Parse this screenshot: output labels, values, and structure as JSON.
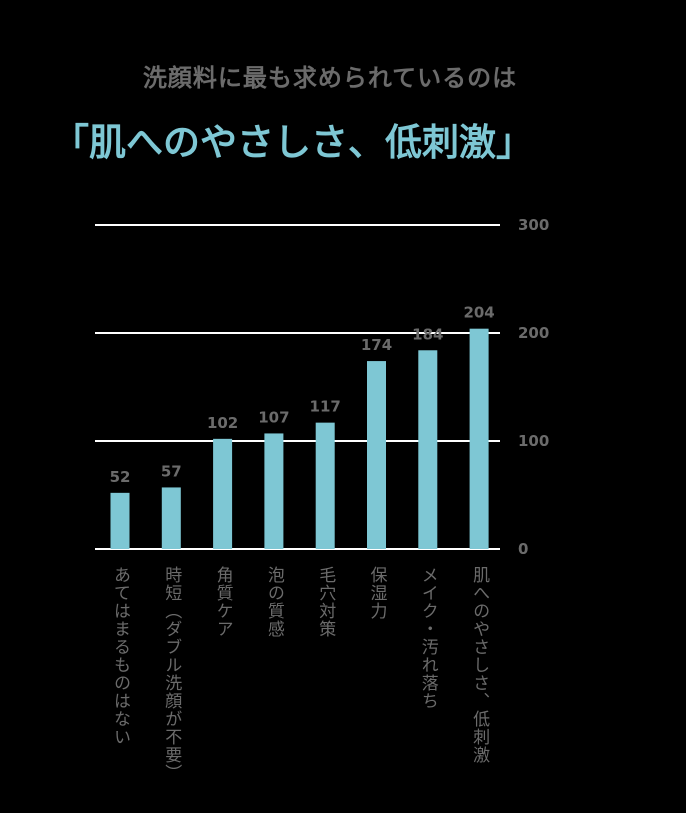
{
  "title": "洗顔料に最も求められているのは",
  "headline": "「肌へのやさしさ、低刺激」",
  "colors": {
    "background": "#000000",
    "bar": "#7ec7d4",
    "title": "#6b6b6b",
    "headline": "#7ec7d4",
    "label": "#6b6b6b",
    "grid": "#ffffff"
  },
  "chart_data": {
    "type": "bar",
    "categories": [
      "あてはまるものはない",
      "時短（ダブル洗顔が不要）",
      "角質ケア",
      "泡の質感",
      "毛穴対策",
      "保湿力",
      "メイク・汚れ落ち",
      "肌へのやさしさ、低刺激"
    ],
    "values": [
      52,
      57,
      102,
      107,
      117,
      174,
      184,
      204
    ],
    "ylim": [
      0,
      300
    ],
    "yticks": [
      0,
      100,
      200,
      300
    ],
    "grid": true,
    "y_axis_position": "right",
    "category_label_orientation": "vertical"
  }
}
